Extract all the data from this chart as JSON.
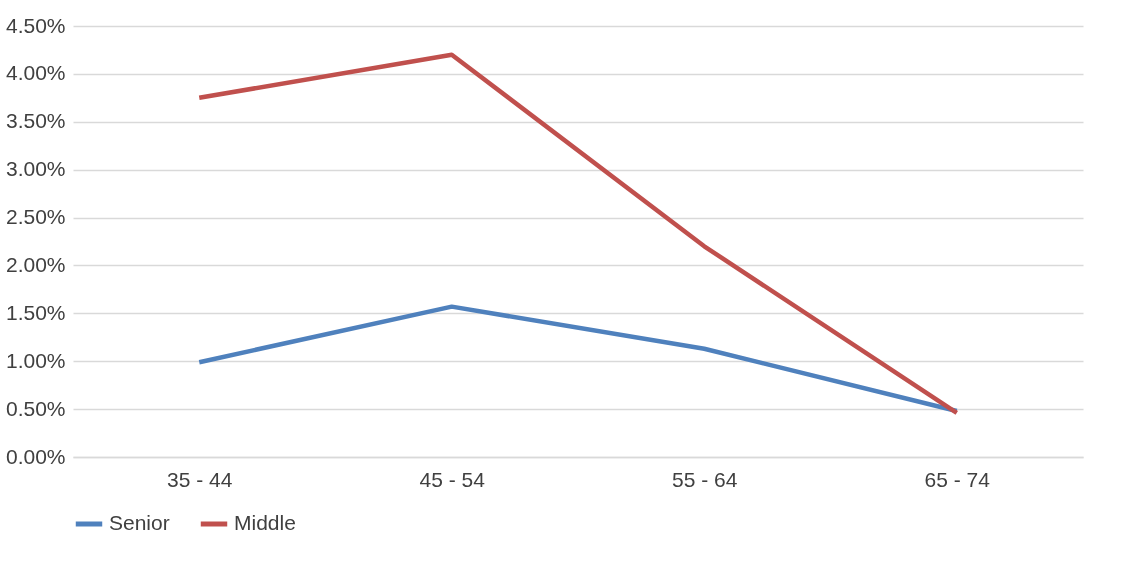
{
  "chart_data": {
    "type": "line",
    "categories": [
      "35 - 44",
      "45 - 54",
      "55 - 64",
      "65 - 74"
    ],
    "series": [
      {
        "name": "Senior",
        "color": "#4f81bd",
        "values": [
          0.99,
          1.57,
          1.13,
          0.48
        ]
      },
      {
        "name": "Middle",
        "color": "#c0504d",
        "values": [
          3.75,
          4.2,
          2.2,
          0.46
        ]
      }
    ],
    "ylim": [
      0,
      4.5
    ],
    "yticks": [
      {
        "value": 0,
        "label": "0.00%"
      },
      {
        "value": 0.5,
        "label": "0.50%"
      },
      {
        "value": 1,
        "label": "1.00%"
      },
      {
        "value": 1.5,
        "label": "1.50%"
      },
      {
        "value": 2,
        "label": "2.00%"
      },
      {
        "value": 2.5,
        "label": "2.50%"
      },
      {
        "value": 3,
        "label": "3.00%"
      },
      {
        "value": 3.5,
        "label": "3.50%"
      },
      {
        "value": 4,
        "label": "4.00%"
      },
      {
        "value": 4.5,
        "label": "4.50%"
      }
    ],
    "grid": "y",
    "legend": "bottom",
    "marker": "none",
    "line_style": "solid"
  }
}
